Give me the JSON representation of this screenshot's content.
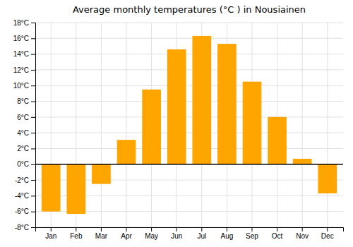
{
  "chart_data": {
    "type": "bar",
    "title": "Average monthly temperatures (°C ) in Nousiainen",
    "categories": [
      "Jan",
      "Feb",
      "Mar",
      "Apr",
      "May",
      "Jun",
      "Jul",
      "Aug",
      "Sep",
      "Oct",
      "Nov",
      "Dec"
    ],
    "values": [
      -6.0,
      -6.3,
      -2.5,
      3.1,
      9.5,
      14.6,
      16.3,
      15.3,
      10.5,
      6.0,
      0.7,
      -3.7
    ],
    "color": "#FFA500",
    "ylim": [
      -8,
      18
    ],
    "yticks": [
      {
        "value": -8,
        "label": "-8°C"
      },
      {
        "value": -6,
        "label": "-6°C"
      },
      {
        "value": -4,
        "label": "-4°C"
      },
      {
        "value": -2,
        "label": "-2°C"
      },
      {
        "value": 0,
        "label": "0°C"
      },
      {
        "value": 2,
        "label": "2°C"
      },
      {
        "value": 4,
        "label": "4°C"
      },
      {
        "value": 6,
        "label": "6°C"
      },
      {
        "value": 8,
        "label": "8°C"
      },
      {
        "value": 10,
        "label": "10°C"
      },
      {
        "value": 12,
        "label": "12°C"
      },
      {
        "value": 14,
        "label": "14°C"
      },
      {
        "value": 16,
        "label": "16°C"
      },
      {
        "value": 18,
        "label": "18°C"
      }
    ],
    "grid": true
  }
}
